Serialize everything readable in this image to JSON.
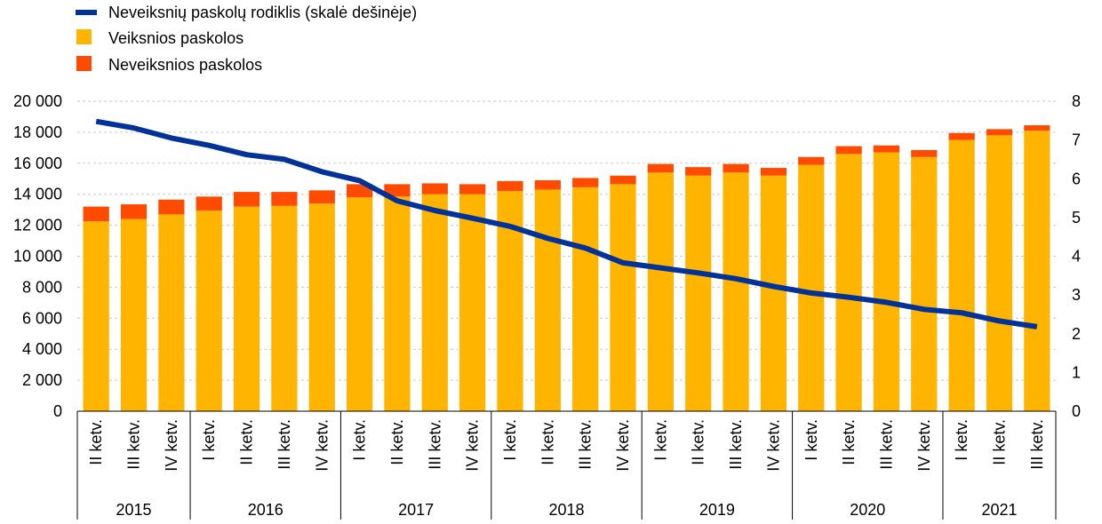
{
  "chart_data": {
    "type": "bar",
    "categories": [
      "II ketv.",
      "III ketv.",
      "IV ketv.",
      "I ketv.",
      "II ketv.",
      "III ketv.",
      "IV ketv.",
      "I ketv.",
      "II ketv.",
      "III ketv.",
      "IV ketv.",
      "I ketv.",
      "II ketv.",
      "III ketv.",
      "IV ketv.",
      "I ketv.",
      "II ketv.",
      "III ketv.",
      "IV ketv.",
      "I ketv.",
      "II ketv.",
      "III ketv.",
      "IV ketv.",
      "I ketv.",
      "II ketv.",
      "III ketv."
    ],
    "years": [
      {
        "label": "2015",
        "count": 3
      },
      {
        "label": "2016",
        "count": 4
      },
      {
        "label": "2017",
        "count": 4
      },
      {
        "label": "2018",
        "count": 4
      },
      {
        "label": "2019",
        "count": 4
      },
      {
        "label": "2020",
        "count": 4
      },
      {
        "label": "2021",
        "count": 3
      }
    ],
    "series": [
      {
        "name": "Veiksnios paskolos",
        "kind": "stacked-bar",
        "color": "#FFB400",
        "values": [
          12250,
          12400,
          12700,
          12950,
          13200,
          13250,
          13400,
          13800,
          13850,
          14000,
          14000,
          14200,
          14300,
          14450,
          14650,
          15400,
          15200,
          15400,
          15200,
          15900,
          16600,
          16700,
          16400,
          17500,
          17800,
          18100
        ]
      },
      {
        "name": "Neveiksnios paskolos",
        "kind": "stacked-bar",
        "color": "#FF4B00",
        "values": [
          950,
          950,
          950,
          900,
          950,
          900,
          850,
          850,
          800,
          700,
          650,
          650,
          600,
          600,
          550,
          550,
          550,
          550,
          500,
          500,
          500,
          450,
          450,
          450,
          400,
          350
        ]
      },
      {
        "name": "Neveiksnių paskolų rodiklis (skalė dešinėje)",
        "kind": "line",
        "axis": "right",
        "color": "#003299",
        "values": [
          7.48,
          7.31,
          7.05,
          6.86,
          6.62,
          6.5,
          6.18,
          5.95,
          5.43,
          5.18,
          4.98,
          4.77,
          4.46,
          4.21,
          3.83,
          3.7,
          3.57,
          3.42,
          3.22,
          3.05,
          2.94,
          2.81,
          2.63,
          2.54,
          2.33,
          2.18
        ]
      }
    ],
    "y_left": {
      "min": 0,
      "max": 20000,
      "step": 2000,
      "tick_labels": [
        "0",
        "2 000",
        "4 000",
        "6 000",
        "8 000",
        "10 000",
        "12 000",
        "14 000",
        "16 000",
        "18 000",
        "20 000"
      ]
    },
    "y_right": {
      "min": 0,
      "max": 8,
      "step": 1,
      "tick_labels": [
        "0",
        "1",
        "2",
        "3",
        "4",
        "5",
        "6",
        "7",
        "8"
      ]
    },
    "legend": {
      "position": "top-left",
      "items": [
        {
          "label": "Neveiksnių paskolų rodiklis (skalė dešinėje)",
          "marker": "line",
          "color": "#003299"
        },
        {
          "label": "Veiksnios paskolos",
          "marker": "square",
          "color": "#FFB400"
        },
        {
          "label": "Neveiksnios paskolos",
          "marker": "square",
          "color": "#FF4B00"
        }
      ]
    },
    "grid": "horizontal dashed"
  }
}
